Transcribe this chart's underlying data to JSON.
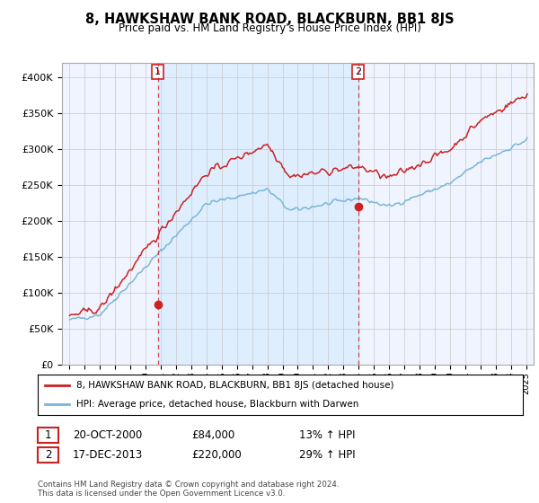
{
  "title": "8, HAWKSHAW BANK ROAD, BLACKBURN, BB1 8JS",
  "subtitle": "Price paid vs. HM Land Registry's House Price Index (HPI)",
  "legend_line1": "8, HAWKSHAW BANK ROAD, BLACKBURN, BB1 8JS (detached house)",
  "legend_line2": "HPI: Average price, detached house, Blackburn with Darwen",
  "annotation1_date": "20-OCT-2000",
  "annotation1_price": "£84,000",
  "annotation1_hpi": "13% ↑ HPI",
  "annotation2_date": "17-DEC-2013",
  "annotation2_price": "£220,000",
  "annotation2_hpi": "29% ↑ HPI",
  "footer": "Contains HM Land Registry data © Crown copyright and database right 2024.\nThis data is licensed under the Open Government Licence v3.0.",
  "sale1_year": 2000.8,
  "sale1_price": 84000,
  "sale2_year": 2013.96,
  "sale2_price": 220000,
  "hpi_line_color": "#7ab6d8",
  "price_line_color": "#cc2222",
  "sale_dot_color": "#cc2222",
  "shade_color": "#ddeeff",
  "ylim_min": 0,
  "ylim_max": 420000,
  "xlim_min": 1994.5,
  "xlim_max": 2025.5,
  "background_color": "#ffffff",
  "plot_bg_color": "#f0f4ff",
  "grid_color": "#c8c8c8"
}
